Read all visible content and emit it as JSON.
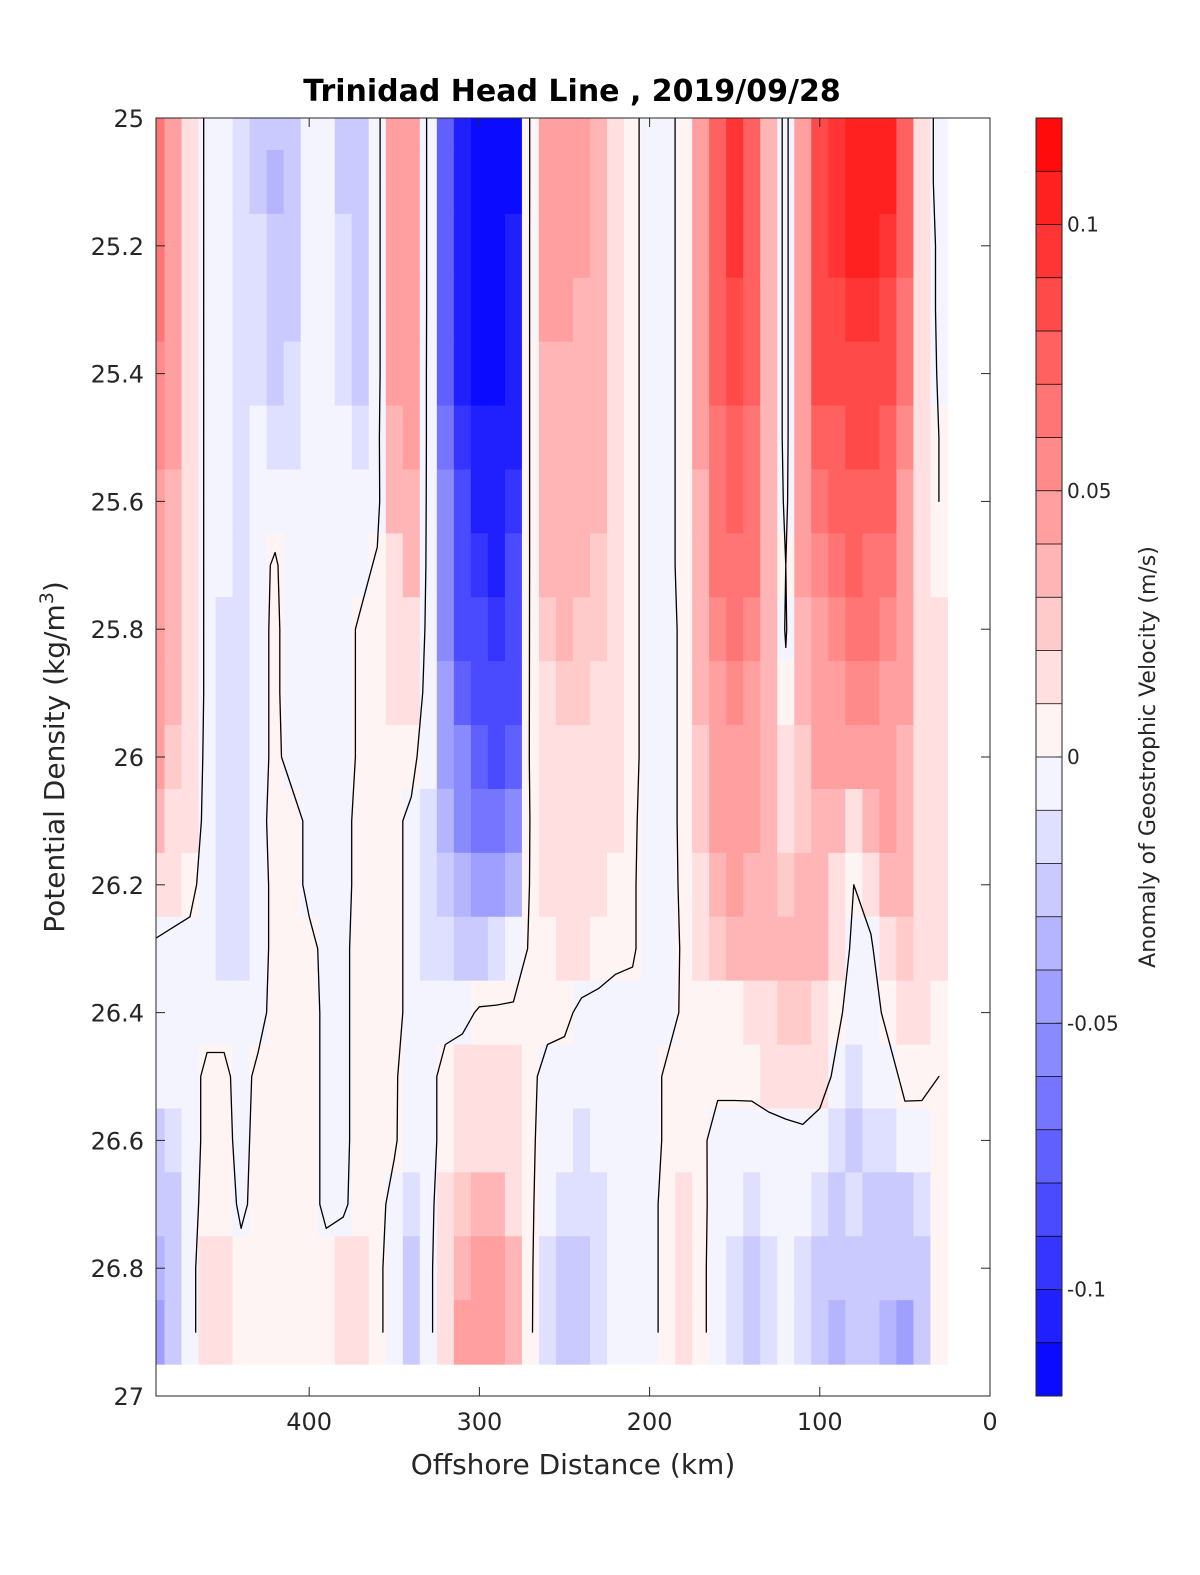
{
  "chart_data": {
    "type": "heatmap",
    "subtype": "filled-contour",
    "title": "Trinidad Head Line , 2019/09/28",
    "xlabel": "Offshore Distance (km)",
    "ylabel": "Potential Density (kg/m",
    "ylabel_superscript": "3",
    "ylabel_suffix": ")",
    "xlim": [
      490,
      0
    ],
    "x_reversed": true,
    "ylim": [
      25,
      27
    ],
    "y_reversed": true,
    "x_ticks": [
      400,
      300,
      200,
      100,
      0
    ],
    "y_ticks": [
      25,
      25.2,
      25.4,
      25.6,
      25.8,
      26,
      26.2,
      26.4,
      26.6,
      26.8,
      27
    ],
    "y_tick_labels": [
      "25",
      "25.2",
      "25.4",
      "25.6",
      "25.8",
      "26",
      "26.2",
      "26.4",
      "26.6",
      "26.8",
      "27"
    ],
    "data_extent": {
      "x": [
        490,
        30
      ],
      "y": [
        25,
        26.9
      ]
    },
    "colorbar": {
      "label": "Anomaly of Geostrophic Velocity (m/s)",
      "limits": [
        -0.12,
        0.12
      ],
      "ticks": [
        0.1,
        0.05,
        0,
        -0.05,
        -0.1
      ],
      "tick_labels": [
        "0.1",
        "0.05",
        "0",
        "-0.05",
        "-0.1"
      ],
      "level_step": 0.01,
      "colormap": "blue-white-red",
      "negative_color": "#0000ff",
      "neutral_color": "#ffffff",
      "positive_color": "#ff0000"
    },
    "zero_contour": {
      "color": "#000000"
    },
    "x_grid": [
      490,
      480,
      470,
      460,
      450,
      440,
      430,
      420,
      410,
      400,
      390,
      380,
      370,
      360,
      350,
      340,
      330,
      320,
      310,
      300,
      290,
      280,
      270,
      260,
      250,
      240,
      230,
      220,
      210,
      200,
      190,
      180,
      170,
      160,
      150,
      140,
      130,
      120,
      110,
      100,
      90,
      80,
      70,
      60,
      50,
      40,
      30
    ],
    "y_grid": [
      25,
      25.1,
      25.2,
      25.3,
      25.4,
      25.5,
      25.6,
      25.7,
      25.8,
      25.9,
      26,
      26.1,
      26.2,
      26.3,
      26.4,
      26.5,
      26.6,
      26.7,
      26.8,
      26.9
    ],
    "values": [
      [
        0.06,
        0.04,
        0.02,
        -0.005,
        -0.008,
        -0.012,
        -0.02,
        -0.03,
        -0.02,
        -0.008,
        -0.005,
        -0.02,
        -0.03,
        -0.008,
        0.04,
        0.045,
        -0.005,
        -0.07,
        -0.1,
        -0.115,
        -0.115,
        -0.11,
        0.005,
        0.04,
        0.045,
        0.04,
        0.035,
        0.02,
        0.005,
        -0.008,
        -0.005,
        0.005,
        0.04,
        0.07,
        0.09,
        0.07,
        0.03,
        -0.008,
        0.05,
        0.08,
        0.09,
        0.1,
        0.11,
        0.105,
        0.07,
        0.02,
        -0.01
      ],
      [
        0.06,
        0.04,
        0.02,
        -0.005,
        -0.008,
        -0.015,
        -0.02,
        -0.035,
        -0.025,
        -0.01,
        -0.005,
        -0.02,
        -0.03,
        -0.008,
        0.04,
        0.045,
        -0.005,
        -0.07,
        -0.1,
        -0.115,
        -0.115,
        -0.11,
        0.005,
        0.04,
        0.045,
        0.04,
        0.035,
        0.02,
        0.005,
        -0.008,
        -0.005,
        0.005,
        0.04,
        0.07,
        0.09,
        0.07,
        0.03,
        -0.008,
        0.05,
        0.08,
        0.09,
        0.1,
        0.11,
        0.1,
        0.07,
        0.02,
        -0.01
      ],
      [
        0.06,
        0.04,
        0.02,
        -0.005,
        -0.01,
        -0.012,
        -0.015,
        -0.03,
        -0.025,
        -0.01,
        -0.005,
        -0.015,
        -0.025,
        -0.008,
        0.04,
        0.045,
        -0.005,
        -0.07,
        -0.1,
        -0.115,
        -0.115,
        -0.1,
        0.005,
        0.04,
        0.04,
        0.04,
        0.035,
        0.02,
        0.005,
        -0.008,
        -0.005,
        0.005,
        0.04,
        0.07,
        0.09,
        0.07,
        0.03,
        -0.008,
        0.05,
        0.08,
        0.09,
        0.1,
        0.1,
        0.09,
        0.07,
        0.02,
        -0.005
      ],
      [
        0.06,
        0.04,
        0.02,
        -0.005,
        -0.01,
        -0.012,
        -0.012,
        -0.03,
        -0.02,
        -0.01,
        -0.005,
        -0.012,
        -0.025,
        -0.008,
        0.04,
        0.045,
        -0.005,
        -0.07,
        -0.1,
        -0.11,
        -0.11,
        -0.1,
        0.005,
        0.04,
        0.04,
        0.035,
        0.03,
        0.02,
        0.005,
        -0.008,
        -0.005,
        0.005,
        0.04,
        0.07,
        0.08,
        0.07,
        0.03,
        -0.008,
        0.05,
        0.08,
        0.085,
        0.09,
        0.09,
        0.085,
        0.065,
        0.02,
        -0.005
      ],
      [
        0.055,
        0.04,
        0.02,
        -0.005,
        -0.01,
        -0.012,
        -0.012,
        -0.025,
        -0.015,
        -0.01,
        -0.005,
        -0.012,
        -0.02,
        -0.008,
        0.04,
        0.04,
        -0.005,
        -0.07,
        -0.1,
        -0.11,
        -0.11,
        -0.1,
        0.005,
        0.035,
        0.035,
        0.035,
        0.03,
        0.02,
        0.005,
        -0.008,
        -0.005,
        0.005,
        0.04,
        0.07,
        0.08,
        0.07,
        0.03,
        -0.008,
        0.05,
        0.08,
        0.08,
        0.085,
        0.085,
        0.08,
        0.06,
        0.02,
        -0.003
      ],
      [
        0.055,
        0.04,
        0.02,
        -0.005,
        -0.01,
        -0.012,
        -0.01,
        -0.015,
        -0.012,
        -0.01,
        -0.005,
        -0.008,
        -0.015,
        -0.005,
        0.035,
        0.04,
        -0.005,
        -0.065,
        -0.095,
        -0.105,
        -0.105,
        -0.1,
        0.005,
        0.035,
        0.035,
        0.035,
        0.03,
        0.02,
        0.005,
        -0.008,
        -0.005,
        0.005,
        0.04,
        0.065,
        0.075,
        0.065,
        0.03,
        -0.008,
        0.05,
        0.07,
        0.075,
        0.08,
        0.08,
        0.075,
        0.055,
        0.02,
        0.0
      ],
      [
        0.05,
        0.035,
        0.02,
        -0.005,
        -0.01,
        -0.012,
        -0.01,
        -0.008,
        -0.01,
        -0.01,
        -0.005,
        -0.005,
        -0.01,
        -0.005,
        0.03,
        0.035,
        -0.005,
        -0.06,
        -0.09,
        -0.1,
        -0.1,
        -0.095,
        0.005,
        0.03,
        0.03,
        0.03,
        0.03,
        0.02,
        0.005,
        -0.008,
        -0.005,
        0.005,
        0.035,
        0.06,
        0.07,
        0.06,
        0.03,
        -0.005,
        0.04,
        0.06,
        0.07,
        0.075,
        0.075,
        0.07,
        0.05,
        0.02,
        0.0
      ],
      [
        0.05,
        0.035,
        0.02,
        -0.005,
        -0.01,
        -0.012,
        -0.005,
        0.002,
        -0.01,
        -0.01,
        -0.005,
        -0.005,
        -0.005,
        0.002,
        0.02,
        0.03,
        -0.005,
        -0.055,
        -0.085,
        -0.095,
        -0.1,
        -0.09,
        0.005,
        0.03,
        0.03,
        0.03,
        0.025,
        0.02,
        0.005,
        -0.008,
        -0.005,
        0.005,
        0.035,
        0.06,
        0.065,
        0.06,
        0.03,
        0.0,
        0.04,
        0.055,
        0.065,
        0.07,
        0.065,
        0.06,
        0.05,
        0.02,
        0.005
      ],
      [
        0.05,
        0.03,
        0.02,
        -0.005,
        -0.015,
        -0.012,
        -0.005,
        0.003,
        -0.008,
        -0.008,
        -0.005,
        -0.005,
        0.002,
        0.002,
        0.015,
        0.02,
        -0.005,
        -0.05,
        -0.08,
        -0.09,
        -0.095,
        -0.085,
        0.005,
        0.025,
        0.03,
        0.025,
        0.025,
        0.02,
        0.005,
        -0.008,
        -0.008,
        0.005,
        0.03,
        0.055,
        0.06,
        0.055,
        0.03,
        -0.002,
        0.035,
        0.05,
        0.055,
        0.06,
        0.06,
        0.055,
        0.045,
        0.02,
        0.01
      ],
      [
        0.045,
        0.03,
        0.02,
        -0.005,
        -0.015,
        -0.012,
        -0.005,
        0.003,
        -0.008,
        -0.005,
        -0.005,
        -0.005,
        0.002,
        0.003,
        0.01,
        0.01,
        -0.005,
        -0.045,
        -0.075,
        -0.085,
        -0.09,
        -0.08,
        0.005,
        0.02,
        0.025,
        0.025,
        0.02,
        0.015,
        0.005,
        -0.008,
        -0.008,
        0.005,
        0.03,
        0.05,
        0.055,
        0.05,
        0.03,
        0.005,
        0.03,
        0.045,
        0.05,
        0.055,
        0.055,
        0.05,
        0.04,
        0.02,
        0.01
      ],
      [
        0.04,
        0.025,
        0.015,
        -0.005,
        -0.012,
        -0.012,
        -0.005,
        0.003,
        -0.005,
        -0.005,
        -0.003,
        -0.005,
        0.002,
        0.003,
        0.005,
        0.005,
        -0.01,
        -0.04,
        -0.06,
        -0.075,
        -0.08,
        -0.07,
        0.005,
        0.02,
        0.02,
        0.02,
        0.02,
        0.015,
        0.005,
        -0.008,
        -0.008,
        0.005,
        0.025,
        0.045,
        0.05,
        0.045,
        0.03,
        0.01,
        0.025,
        0.04,
        0.045,
        0.045,
        0.05,
        0.045,
        0.035,
        0.02,
        0.01
      ],
      [
        0.03,
        0.02,
        0.01,
        -0.005,
        -0.012,
        -0.012,
        -0.005,
        0.005,
        0.005,
        -0.003,
        -0.003,
        -0.005,
        0.005,
        0.003,
        0.003,
        -0.003,
        -0.012,
        -0.035,
        -0.05,
        -0.065,
        -0.065,
        -0.06,
        0.002,
        0.015,
        0.02,
        0.02,
        0.015,
        0.01,
        0.003,
        -0.008,
        -0.008,
        0.005,
        0.025,
        0.04,
        0.045,
        0.04,
        0.03,
        0.015,
        0.025,
        0.035,
        0.035,
        0.02,
        0.03,
        0.04,
        0.035,
        0.02,
        0.01
      ],
      [
        0.015,
        0.01,
        0.005,
        -0.008,
        -0.015,
        -0.012,
        -0.008,
        0.005,
        0.005,
        -0.003,
        -0.003,
        -0.005,
        0.005,
        0.005,
        0.003,
        -0.003,
        -0.015,
        -0.025,
        -0.035,
        -0.04,
        -0.04,
        -0.035,
        0.002,
        0.01,
        0.015,
        0.015,
        0.01,
        0.005,
        0.002,
        -0.008,
        -0.01,
        0.005,
        0.02,
        0.035,
        0.04,
        0.035,
        0.03,
        0.025,
        0.03,
        0.03,
        0.02,
        0.0,
        0.01,
        0.03,
        0.03,
        0.02,
        0.01
      ],
      [
        -0.003,
        -0.005,
        -0.005,
        -0.01,
        -0.015,
        -0.012,
        -0.008,
        0.005,
        0.005,
        0.003,
        -0.003,
        -0.003,
        0.005,
        0.005,
        0.005,
        -0.005,
        -0.012,
        -0.015,
        -0.02,
        -0.02,
        -0.015,
        -0.01,
        0.002,
        0.005,
        0.01,
        0.01,
        0.005,
        0.002,
        0.002,
        -0.008,
        -0.01,
        0.003,
        0.015,
        0.025,
        0.03,
        0.03,
        0.03,
        0.03,
        0.03,
        0.03,
        0.015,
        -0.005,
        -0.003,
        0.02,
        0.025,
        0.02,
        0.01
      ],
      [
        -0.005,
        -0.005,
        -0.005,
        -0.005,
        -0.005,
        -0.003,
        -0.005,
        0.005,
        0.005,
        0.005,
        -0.003,
        -0.003,
        0.005,
        0.005,
        0.005,
        -0.005,
        -0.01,
        -0.005,
        -0.005,
        0.002,
        0.002,
        0.002,
        0.002,
        0.003,
        0.003,
        -0.003,
        -0.003,
        -0.003,
        -0.005,
        -0.005,
        -0.005,
        0.002,
        0.005,
        0.003,
        0.005,
        0.01,
        0.02,
        0.025,
        0.025,
        0.02,
        0.005,
        -0.01,
        -0.008,
        0.005,
        0.015,
        0.01,
        0.005
      ],
      [
        -0.01,
        -0.008,
        -0.005,
        0.003,
        0.003,
        -0.005,
        0.003,
        0.005,
        0.005,
        0.005,
        -0.003,
        -0.003,
        0.005,
        0.005,
        0.002,
        -0.008,
        -0.005,
        0.005,
        0.01,
        0.015,
        0.015,
        0.01,
        0.002,
        -0.003,
        -0.005,
        -0.008,
        -0.008,
        -0.005,
        -0.005,
        -0.005,
        0.002,
        0.002,
        0.003,
        0.003,
        0.003,
        0.005,
        0.01,
        0.01,
        0.015,
        0.01,
        -0.005,
        -0.012,
        -0.01,
        -0.008,
        0.005,
        0.003,
        0.0
      ],
      [
        -0.02,
        -0.015,
        -0.005,
        0.003,
        0.003,
        -0.003,
        0.003,
        0.005,
        0.005,
        0.005,
        -0.003,
        -0.003,
        0.005,
        0.005,
        0.002,
        -0.01,
        -0.005,
        0.005,
        0.015,
        0.02,
        0.02,
        0.015,
        0.002,
        -0.005,
        -0.01,
        -0.012,
        -0.01,
        -0.008,
        -0.005,
        -0.005,
        0.002,
        0.003,
        0.003,
        -0.005,
        -0.005,
        -0.008,
        -0.008,
        -0.005,
        -0.005,
        -0.01,
        -0.015,
        -0.02,
        -0.015,
        -0.012,
        -0.008,
        -0.005,
        0.0
      ],
      [
        -0.03,
        -0.025,
        -0.005,
        0.005,
        0.008,
        -0.003,
        0.005,
        0.005,
        0.005,
        0.005,
        -0.003,
        -0.003,
        0.008,
        0.005,
        -0.005,
        -0.015,
        -0.005,
        0.01,
        0.025,
        0.03,
        0.03,
        0.02,
        0.002,
        -0.008,
        -0.012,
        -0.012,
        -0.012,
        -0.01,
        -0.005,
        -0.005,
        0.005,
        0.01,
        0.005,
        -0.008,
        -0.01,
        -0.012,
        -0.01,
        -0.005,
        -0.008,
        -0.015,
        -0.02,
        -0.015,
        -0.02,
        -0.02,
        -0.02,
        -0.015,
        0.0
      ],
      [
        -0.035,
        -0.03,
        -0.005,
        0.01,
        0.015,
        0.005,
        0.005,
        0.005,
        0.005,
        0.005,
        0.005,
        0.012,
        0.012,
        0.005,
        -0.01,
        -0.02,
        -0.005,
        0.015,
        0.035,
        0.04,
        0.04,
        0.03,
        0.002,
        -0.012,
        -0.02,
        -0.02,
        -0.015,
        -0.01,
        -0.005,
        -0.005,
        0.005,
        0.01,
        0.005,
        -0.01,
        -0.015,
        -0.02,
        -0.015,
        -0.005,
        -0.015,
        -0.025,
        -0.03,
        -0.02,
        -0.02,
        -0.025,
        -0.03,
        -0.025,
        0.0
      ],
      [
        -0.04,
        -0.03,
        -0.005,
        0.01,
        0.015,
        0.005,
        0.005,
        0.005,
        0.005,
        0.005,
        0.005,
        0.015,
        0.015,
        0.005,
        -0.01,
        -0.02,
        -0.005,
        0.015,
        0.04,
        0.05,
        0.05,
        0.03,
        0.002,
        -0.015,
        -0.02,
        -0.02,
        -0.015,
        -0.01,
        -0.005,
        -0.005,
        0.005,
        0.01,
        0.005,
        -0.01,
        -0.015,
        -0.025,
        -0.015,
        -0.005,
        -0.015,
        -0.025,
        -0.035,
        -0.025,
        -0.025,
        -0.035,
        -0.04,
        -0.03,
        0.0
      ]
    ]
  }
}
